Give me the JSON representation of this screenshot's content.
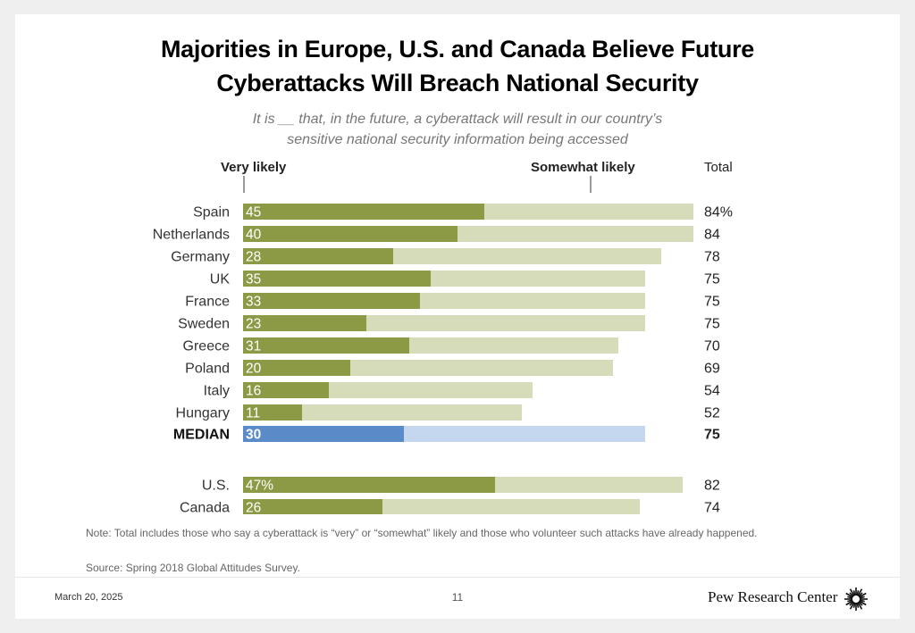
{
  "title_line1": "Majorities in Europe, U.S. and Canada Believe Future",
  "title_line2": "Cyberattacks Will Breach National Security",
  "subtitle_line1": "It is __ that, in the future, a cyberattack will result in our country’s",
  "subtitle_line2": "sensitive national security information being accessed",
  "note": "Note: Total includes those who say a cyberattack is “very” or “somewhat” likely and those who volunteer such attacks have already happened.",
  "source": "Source: Spring 2018 Global Attitudes Survey.",
  "footer": {
    "date": "March 20, 2025",
    "page": "11",
    "brand": "Pew Research Center"
  },
  "colors": {
    "very": "#8c9a46",
    "somewhat": "#d6dbb9",
    "median_very": "#5b8ac9",
    "median_somewhat": "#c5d7ee"
  },
  "chart_data": {
    "type": "bar",
    "orientation": "horizontal",
    "stacked": true,
    "legend": [
      "Very likely",
      "Somewhat likely"
    ],
    "total_label": "Total",
    "categories": [
      "Spain",
      "Netherlands",
      "Germany",
      "UK",
      "France",
      "Sweden",
      "Greece",
      "Poland",
      "Italy",
      "Hungary",
      "MEDIAN",
      "U.S.",
      "Canada"
    ],
    "series": [
      {
        "name": "Very likely",
        "values": [
          45,
          40,
          28,
          35,
          33,
          23,
          31,
          20,
          16,
          11,
          30,
          47,
          26
        ]
      },
      {
        "name": "Somewhat likely",
        "values": [
          39,
          44,
          50,
          40,
          42,
          52,
          39,
          49,
          38,
          41,
          45,
          35,
          48
        ]
      }
    ],
    "very_labels": [
      "45",
      "40",
      "28",
      "35",
      "33",
      "23",
      "31",
      "20",
      "16",
      "11",
      "30",
      "47%",
      "26"
    ],
    "totals": [
      84,
      84,
      78,
      75,
      75,
      75,
      70,
      69,
      54,
      52,
      75,
      82,
      74
    ],
    "total_labels": [
      "84%",
      "84",
      "78",
      "75",
      "75",
      "75",
      "70",
      "69",
      "54",
      "52",
      "75",
      "82",
      "74"
    ],
    "highlight": "MEDIAN"
  }
}
